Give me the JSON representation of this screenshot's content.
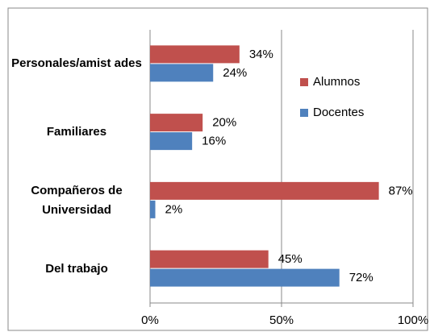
{
  "chart_data": {
    "type": "barh",
    "categories": [
      "Personales/amist ades",
      "Familiares",
      "Compañeros de Universidad",
      "Del trabajo"
    ],
    "series": [
      {
        "name": "Alumnos",
        "color": "#c0504d",
        "values": [
          34,
          20,
          87,
          45
        ],
        "value_labels": [
          "34%",
          "20%",
          "87%",
          "45%"
        ]
      },
      {
        "name": "Docentes",
        "color": "#4f81bd",
        "values": [
          24,
          16,
          2,
          72
        ],
        "value_labels": [
          "24%",
          "16%",
          "2%",
          "72%"
        ]
      }
    ],
    "xlim": [
      0,
      100
    ],
    "xticks": [
      {
        "value": 0,
        "label": "0%"
      },
      {
        "value": 50,
        "label": "50%"
      },
      {
        "value": 100,
        "label": "100%"
      }
    ],
    "grid": true,
    "legend": "right"
  }
}
